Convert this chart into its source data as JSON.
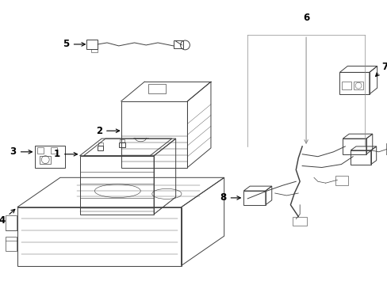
{
  "background_color": "#ffffff",
  "line_color": "#404040",
  "label_color": "#000000",
  "leader_color": "#888888",
  "figsize": [
    4.89,
    3.6
  ],
  "dpi": 100,
  "lw": 0.7
}
